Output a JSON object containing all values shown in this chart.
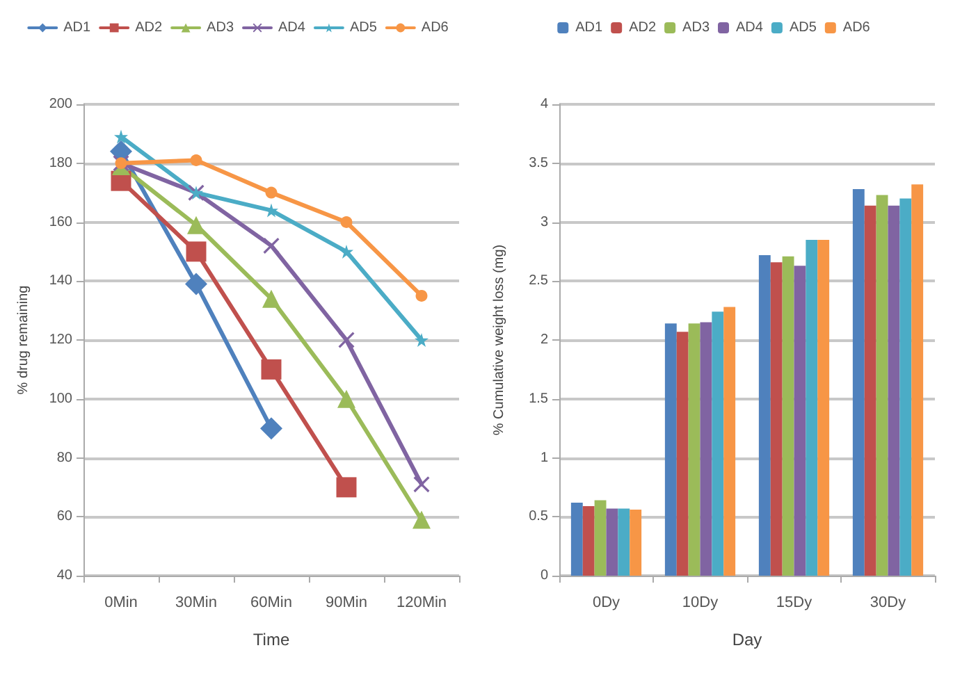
{
  "chart_data": [
    {
      "type": "line",
      "xlabel": "Time",
      "ylabel": "% drug remaining",
      "categories": [
        "0Min",
        "30Min",
        "60Min",
        "90Min",
        "120Min"
      ],
      "ylim": [
        40,
        200
      ],
      "yticks": [
        40,
        60,
        80,
        100,
        120,
        140,
        160,
        180,
        200
      ],
      "grid": "y",
      "legend": "top",
      "series": [
        {
          "name": "AD1",
          "color": "#4f81bd",
          "marker": "diamond",
          "values": [
            184,
            139,
            90,
            null,
            null
          ]
        },
        {
          "name": "AD2",
          "color": "#c0504d",
          "marker": "square",
          "values": [
            174,
            150,
            110,
            70,
            null
          ]
        },
        {
          "name": "AD3",
          "color": "#9bbb59",
          "marker": "triangle",
          "values": [
            179,
            159,
            134,
            100,
            59
          ]
        },
        {
          "name": "AD4",
          "color": "#8064a2",
          "marker": "cross",
          "values": [
            180,
            170,
            152,
            120,
            71
          ]
        },
        {
          "name": "AD5",
          "color": "#4bacc6",
          "marker": "star",
          "values": [
            189,
            170,
            164,
            150,
            120
          ]
        },
        {
          "name": "AD6",
          "color": "#f79646",
          "marker": "circle",
          "values": [
            180,
            181,
            170,
            160,
            135
          ]
        }
      ]
    },
    {
      "type": "bar",
      "xlabel": "Day",
      "ylabel": "% Cumulative weight loss (mg)",
      "categories": [
        "0Dy",
        "10Dy",
        "15Dy",
        "30Dy"
      ],
      "ylim": [
        0,
        4
      ],
      "yticks": [
        0,
        0.5,
        1,
        1.5,
        2,
        2.5,
        3,
        3.5,
        4
      ],
      "grid": "y",
      "legend": "top",
      "series": [
        {
          "name": "AD1",
          "color": "#4f81bd",
          "values": [
            0.62,
            2.14,
            2.72,
            3.28
          ]
        },
        {
          "name": "AD2",
          "color": "#c0504d",
          "values": [
            0.59,
            2.07,
            2.66,
            3.14
          ]
        },
        {
          "name": "AD3",
          "color": "#9bbb59",
          "values": [
            0.64,
            2.14,
            2.71,
            3.23
          ]
        },
        {
          "name": "AD4",
          "color": "#8064a2",
          "values": [
            0.57,
            2.15,
            2.63,
            3.14
          ]
        },
        {
          "name": "AD5",
          "color": "#4bacc6",
          "values": [
            0.57,
            2.24,
            2.85,
            3.2
          ]
        },
        {
          "name": "AD6",
          "color": "#f79646",
          "values": [
            0.56,
            2.28,
            2.85,
            3.32
          ]
        }
      ]
    }
  ]
}
